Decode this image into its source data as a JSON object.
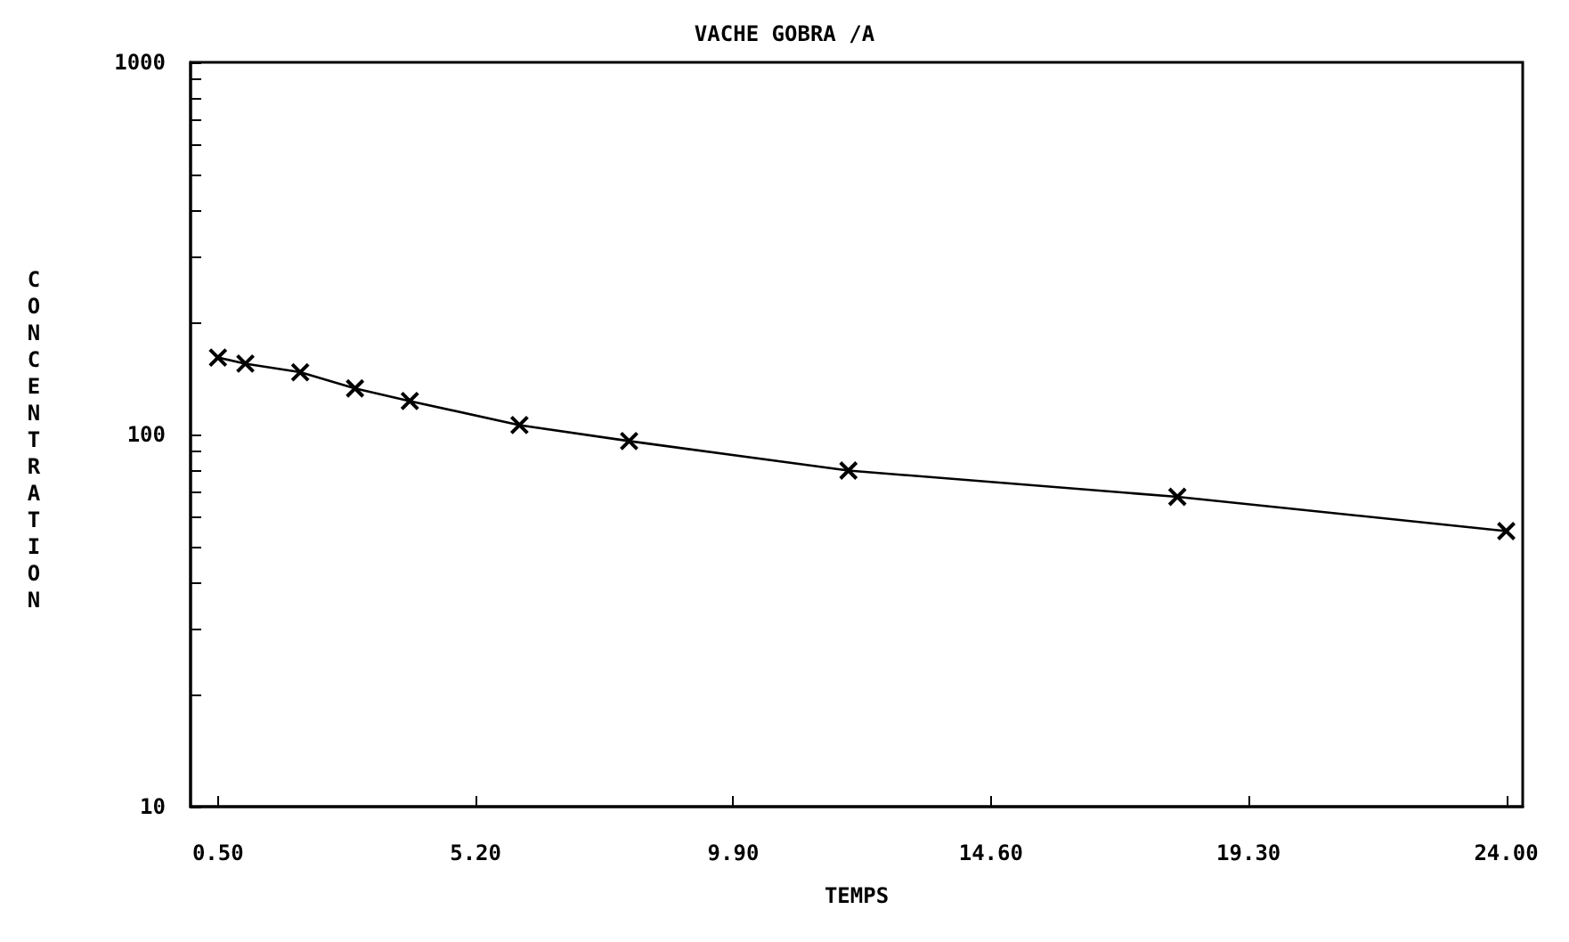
{
  "chart_data": {
    "type": "line",
    "title": "VACHE GOBRA /A",
    "xlabel": "TEMPS",
    "ylabel": "CONCENTRATION",
    "x": [
      0.5,
      1,
      2,
      3,
      4,
      6,
      8,
      12,
      18,
      24
    ],
    "series": [
      {
        "color": "#000000",
        "values": [
          161,
          155,
          147,
          133,
          123,
          106,
          96,
          80,
          68,
          55
        ]
      }
    ],
    "xlim": [
      0,
      24.3
    ],
    "xticks": [
      {
        "value": 0.5,
        "label": "0.50"
      },
      {
        "value": 5.2,
        "label": "5.20"
      },
      {
        "value": 9.9,
        "label": "9.90"
      },
      {
        "value": 14.6,
        "label": "14.60"
      },
      {
        "value": 19.3,
        "label": "19.30"
      },
      {
        "value": 24,
        "label": "24.00"
      }
    ],
    "ylim": [
      10,
      1000
    ],
    "yticks": [
      10,
      {
        "value": 20,
        "label": null
      },
      {
        "value": 30,
        "label": null
      },
      {
        "value": 40,
        "label": null
      },
      {
        "value": 50,
        "label": null
      },
      {
        "value": 60,
        "label": null
      },
      {
        "value": 70,
        "label": null
      },
      {
        "value": 80,
        "label": null
      },
      {
        "value": 90,
        "label": null
      },
      100,
      {
        "value": 200,
        "label": null
      },
      {
        "value": 300,
        "label": null
      },
      {
        "value": 400,
        "label": null
      },
      {
        "value": 500,
        "label": null
      },
      {
        "value": 600,
        "label": null
      },
      {
        "value": 700,
        "label": null
      },
      {
        "value": 800,
        "label": null
      },
      {
        "value": 900,
        "label": null
      },
      1000
    ],
    "log": "y",
    "grid": false,
    "marker": "cross",
    "line_style": "solid"
  }
}
